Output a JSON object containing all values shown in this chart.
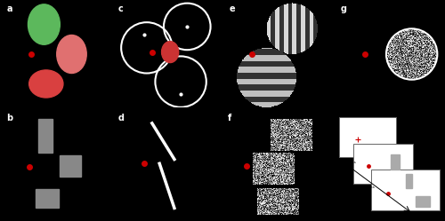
{
  "figure_width": 5.0,
  "figure_height": 2.49,
  "dpi": 100,
  "background_color": "#000000",
  "panel_labels": [
    "a",
    "b",
    "c",
    "d",
    "e",
    "f",
    "g"
  ],
  "label_color": "#ffffff",
  "label_fontsize": 7,
  "red_dot_color": "#cc0000",
  "red_dot_size": 4,
  "gray_color": "#888888",
  "white_color": "#ffffff"
}
